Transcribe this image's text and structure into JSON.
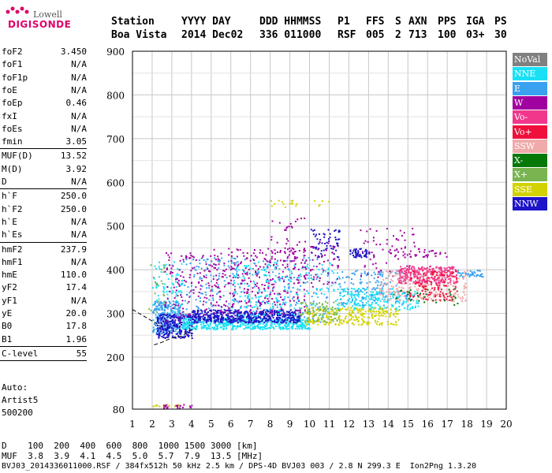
{
  "logo": {
    "top": "Lowell",
    "bottom": "DIGISONDE"
  },
  "header": {
    "labels": [
      "Station",
      "YYYY DAY",
      "DDD HHMMSS",
      "P1",
      "FFS",
      "S",
      "AXN",
      "PPS",
      "IGA",
      "PS"
    ],
    "values": [
      "Boa Vista",
      "2014 Dec02",
      "336 011000",
      "RSF",
      "005",
      "2",
      "713",
      "100",
      "03+",
      "30"
    ]
  },
  "params": {
    "group1": [
      {
        "label": "foF2",
        "value": "3.450"
      },
      {
        "label": "foF1",
        "value": "N/A"
      },
      {
        "label": "foF1p",
        "value": "N/A"
      },
      {
        "label": "foE",
        "value": "N/A"
      },
      {
        "label": "foEp",
        "value": "0.46"
      },
      {
        "label": "fxI",
        "value": "N/A"
      },
      {
        "label": "foEs",
        "value": "N/A"
      },
      {
        "label": "fmin",
        "value": "3.05"
      }
    ],
    "group2": [
      {
        "label": "MUF(D)",
        "value": "13.52"
      },
      {
        "label": "M(D)",
        "value": "3.92"
      },
      {
        "label": "D",
        "value": "N/A"
      }
    ],
    "group3": [
      {
        "label": "h`F",
        "value": "250.0"
      },
      {
        "label": "h`F2",
        "value": "250.0"
      },
      {
        "label": "h`E",
        "value": "N/A"
      },
      {
        "label": "h`Es",
        "value": "N/A"
      }
    ],
    "group4": [
      {
        "label": "hmF2",
        "value": "237.9"
      },
      {
        "label": "hmF1",
        "value": "N/A"
      },
      {
        "label": "hmE",
        "value": "110.0"
      },
      {
        "label": "yF2",
        "value": "17.4"
      },
      {
        "label": "yF1",
        "value": "N/A"
      },
      {
        "label": "yE",
        "value": "20.0"
      },
      {
        "label": "B0",
        "value": "17.8"
      },
      {
        "label": "B1",
        "value": "1.96"
      }
    ],
    "group5": [
      {
        "label": "C-level",
        "value": "55"
      }
    ],
    "auto": {
      "label": "Auto:",
      "software": "Artist5",
      "version": "500200"
    }
  },
  "footer": {
    "d_row": "D    100  200  400  600  800  1000 1500 3000 [km]",
    "muf_row": "MUF  3.8  3.9  4.1  4.5  5.0  5.7  7.9  13.5 [MHz]",
    "info": "BVJ03_2014336011000.RSF / 384fx512h 50 kHz 2.5 km / DPS-4D BVJ03 003 / 2.8 N 299.3 E  Ion2Png 1.3.20"
  },
  "legend": [
    {
      "label": "NoVal",
      "color": "#808080"
    },
    {
      "label": "NNE",
      "color": "#19e0f5"
    },
    {
      "label": "E",
      "color": "#3aa0f0"
    },
    {
      "label": "W",
      "color": "#a0009f"
    },
    {
      "label": "Vo-",
      "color": "#f0378c"
    },
    {
      "label": "Vo+",
      "color": "#f0103c"
    },
    {
      "label": "SSW",
      "color": "#f0aaaa"
    },
    {
      "label": "X-",
      "color": "#067808"
    },
    {
      "label": "X+",
      "color": "#78b450"
    },
    {
      "label": "SSE",
      "color": "#d2d200"
    },
    {
      "label": "NNW",
      "color": "#1e14c8"
    }
  ],
  "chart_data": {
    "type": "scatter",
    "xlim": [
      1,
      20
    ],
    "ylim": [
      80,
      900
    ],
    "xticks": [
      1,
      2,
      3,
      4,
      5,
      6,
      7,
      8,
      9,
      10,
      11,
      12,
      13,
      14,
      15,
      16,
      17,
      18,
      19,
      20
    ],
    "yticks": [
      80,
      200,
      300,
      400,
      500,
      600,
      700,
      800,
      900
    ],
    "grid": true,
    "legend_position": "right",
    "clusters": [
      {
        "series": "E",
        "x": [
          2.0,
          3.5
        ],
        "y": [
          255,
          330
        ],
        "n": 260
      },
      {
        "series": "NNE",
        "x": [
          2.0,
          3.5
        ],
        "y": [
          300,
          420
        ],
        "n": 80
      },
      {
        "series": "NNW",
        "x": [
          2.2,
          4.0
        ],
        "y": [
          245,
          300
        ],
        "n": 260
      },
      {
        "series": "W",
        "x": [
          2.6,
          5.0
        ],
        "y": [
          280,
          440
        ],
        "n": 130
      },
      {
        "series": "NNE",
        "x": [
          3.5,
          10.0
        ],
        "y": [
          265,
          290
        ],
        "n": 500
      },
      {
        "series": "E",
        "x": [
          3.5,
          11.0
        ],
        "y": [
          280,
          430
        ],
        "n": 320
      },
      {
        "series": "NNW",
        "x": [
          4.0,
          9.5
        ],
        "y": [
          280,
          310
        ],
        "n": 520
      },
      {
        "series": "W",
        "x": [
          5.0,
          9.8
        ],
        "y": [
          300,
          450
        ],
        "n": 320
      },
      {
        "series": "NNE",
        "x": [
          6.0,
          11.5
        ],
        "y": [
          295,
          420
        ],
        "n": 200
      },
      {
        "series": "W",
        "x": [
          8.0,
          9.8
        ],
        "y": [
          420,
          520
        ],
        "n": 40
      },
      {
        "series": "SSE",
        "x": [
          9.8,
          14.5
        ],
        "y": [
          275,
          315
        ],
        "n": 260
      },
      {
        "series": "X+",
        "x": [
          9.5,
          11.5
        ],
        "y": [
          280,
          330
        ],
        "n": 80
      },
      {
        "series": "NNW",
        "x": [
          10.0,
          11.5
        ],
        "y": [
          430,
          500
        ],
        "n": 60
      },
      {
        "series": "W",
        "x": [
          10.0,
          11.5
        ],
        "y": [
          360,
          470
        ],
        "n": 50
      },
      {
        "series": "NNE",
        "x": [
          11.5,
          15.5
        ],
        "y": [
          310,
          360
        ],
        "n": 220
      },
      {
        "series": "E",
        "x": [
          11.5,
          15.0
        ],
        "y": [
          320,
          400
        ],
        "n": 140
      },
      {
        "series": "NNW",
        "x": [
          12.0,
          13.0
        ],
        "y": [
          430,
          450
        ],
        "n": 50
      },
      {
        "series": "W",
        "x": [
          12.5,
          15.5
        ],
        "y": [
          380,
          500
        ],
        "n": 60
      },
      {
        "series": "SSW",
        "x": [
          13.5,
          18.0
        ],
        "y": [
          330,
          400
        ],
        "n": 260
      },
      {
        "series": "Vo-",
        "x": [
          14.5,
          17.5
        ],
        "y": [
          370,
          410
        ],
        "n": 260
      },
      {
        "series": "Vo+",
        "x": [
          15.0,
          17.5
        ],
        "y": [
          330,
          400
        ],
        "n": 110
      },
      {
        "series": "W",
        "x": [
          14.0,
          17.0
        ],
        "y": [
          430,
          450
        ],
        "n": 40
      },
      {
        "series": "X-",
        "x": [
          14.0,
          17.5
        ],
        "y": [
          320,
          360
        ],
        "n": 30
      },
      {
        "series": "E",
        "x": [
          17.5,
          18.8
        ],
        "y": [
          385,
          400
        ],
        "n": 40
      },
      {
        "series": "SSE",
        "x": [
          2.0,
          3.5
        ],
        "y": [
          88,
          92
        ],
        "n": 20
      },
      {
        "series": "W",
        "x": [
          2.5,
          4.0
        ],
        "y": [
          84,
          92
        ],
        "n": 20
      },
      {
        "series": "SSE",
        "x": [
          8.0,
          11.0
        ],
        "y": [
          545,
          560
        ],
        "n": 20
      },
      {
        "series": "X+",
        "x": [
          1.8,
          2.6
        ],
        "y": [
          300,
          420
        ],
        "n": 20
      }
    ],
    "trace": {
      "x": [
        2.1,
        2.5,
        3.0,
        3.5,
        4.0,
        4.2
      ],
      "y": [
        228,
        234,
        244,
        248,
        262,
        265
      ]
    }
  }
}
